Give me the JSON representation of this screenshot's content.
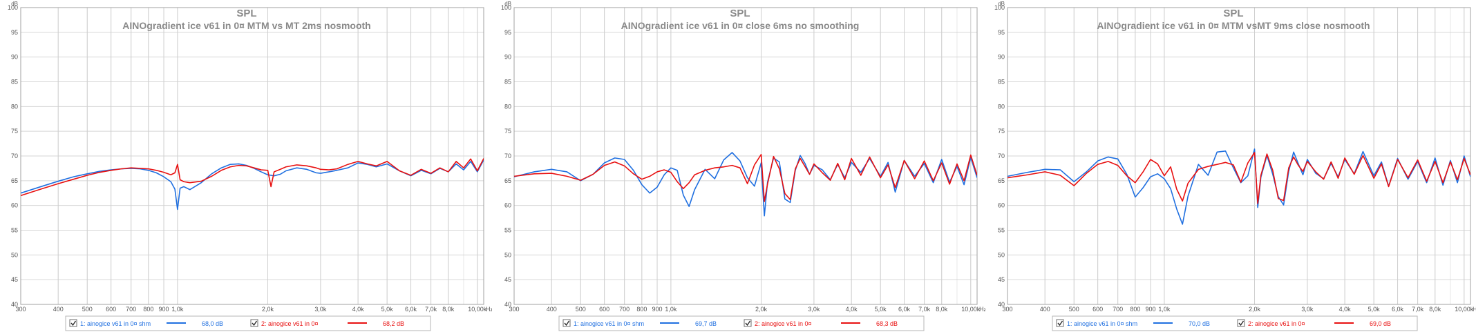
{
  "chart_data": [
    {
      "type": "line",
      "title": "SPL",
      "subtitle": "AINOgradient ice v61 in 0¤ MTM vs MT 2ms nosmooth",
      "yunit": "dB",
      "xunit": "Hz",
      "xscale": "log",
      "xlim": [
        300,
        10500
      ],
      "ylim": [
        40,
        100
      ],
      "x_tick_labels": [
        "300",
        "400",
        "500",
        "600",
        "700",
        "800",
        "900",
        "1,0k",
        "2,0k",
        "3,0k",
        "4,0k",
        "5,0k",
        "6,0k",
        "7,0k",
        "8,0k",
        "10,00k"
      ],
      "y_tick_labels": [
        "100",
        "95",
        "90",
        "85",
        "80",
        "75",
        "70",
        "65",
        "60",
        "55",
        "50",
        "45",
        "40"
      ],
      "grid": true,
      "legend_position": "bottom",
      "series": [
        {
          "name": "1: ainogice v61 in 0¤ shm",
          "value_label": "68,0 dB",
          "color": "#1f6fe0",
          "x": [
            300,
            350,
            400,
            450,
            500,
            550,
            600,
            650,
            700,
            750,
            800,
            850,
            900,
            950,
            980,
            1000,
            1020,
            1050,
            1100,
            1200,
            1300,
            1400,
            1500,
            1600,
            1700,
            1800,
            1900,
            2000,
            2100,
            2200,
            2300,
            2500,
            2700,
            2900,
            3000,
            3200,
            3400,
            3700,
            4000,
            4300,
            4600,
            5000,
            5500,
            6000,
            6500,
            7000,
            7500,
            8000,
            8500,
            9000,
            9500,
            10000,
            10500
          ],
          "y": [
            62.5,
            63.8,
            64.9,
            65.8,
            66.4,
            66.9,
            67.2,
            67.4,
            67.5,
            67.4,
            67.1,
            66.6,
            65.8,
            64.8,
            63.3,
            59.2,
            63.5,
            63.8,
            63.2,
            64.6,
            66.4,
            67.6,
            68.3,
            68.4,
            68.1,
            67.5,
            66.8,
            66.2,
            66.0,
            66.3,
            67.0,
            67.6,
            67.3,
            66.6,
            66.5,
            66.8,
            67.1,
            67.6,
            68.6,
            68.3,
            67.8,
            68.4,
            67.0,
            66.0,
            67.1,
            66.4,
            67.5,
            66.8,
            68.4,
            67.2,
            68.9,
            66.8,
            69.2
          ]
        },
        {
          "name": "2: ainogice v61 in 0¤",
          "value_label": "68,2 dB",
          "color": "#e81010",
          "x": [
            300,
            350,
            400,
            450,
            500,
            550,
            600,
            650,
            700,
            750,
            800,
            850,
            900,
            950,
            980,
            1000,
            1020,
            1050,
            1100,
            1200,
            1300,
            1400,
            1500,
            1600,
            1700,
            1800,
            1900,
            2000,
            2050,
            2100,
            2200,
            2300,
            2500,
            2700,
            2900,
            3000,
            3200,
            3400,
            3700,
            4000,
            4300,
            4600,
            5000,
            5500,
            6000,
            6500,
            7000,
            7500,
            8000,
            8500,
            9000,
            9500,
            10000,
            10500
          ],
          "y": [
            62.0,
            63.3,
            64.4,
            65.3,
            66.1,
            66.7,
            67.1,
            67.4,
            67.6,
            67.5,
            67.4,
            67.1,
            66.7,
            66.2,
            66.6,
            68.3,
            65.2,
            64.8,
            64.6,
            64.9,
            65.9,
            67.1,
            67.8,
            68.1,
            68.0,
            67.6,
            67.2,
            67.1,
            63.8,
            66.8,
            67.3,
            67.8,
            68.2,
            68.0,
            67.6,
            67.3,
            67.2,
            67.4,
            68.3,
            68.9,
            68.4,
            68.0,
            68.9,
            67.0,
            66.1,
            67.3,
            66.5,
            67.6,
            66.8,
            68.9,
            67.6,
            69.4,
            67.0,
            69.5
          ]
        }
      ]
    },
    {
      "type": "line",
      "title": "SPL",
      "subtitle": "AINOgradient ice v61 in 0¤ close 6ms no smoothing",
      "yunit": "dB",
      "xunit": "Hz",
      "xscale": "log",
      "xlim": [
        300,
        10500
      ],
      "ylim": [
        40,
        100
      ],
      "x_tick_labels": [
        "300",
        "400",
        "500",
        "600",
        "700",
        "800",
        "900",
        "1,0k",
        "2,0k",
        "3,0k",
        "4,0k",
        "5,0k",
        "6,0k",
        "7,0k",
        "8,0k",
        "10,00k"
      ],
      "y_tick_labels": [
        "100",
        "95",
        "90",
        "85",
        "80",
        "75",
        "70",
        "65",
        "60",
        "55",
        "50",
        "45",
        "40"
      ],
      "grid": true,
      "legend_position": "bottom",
      "series": [
        {
          "name": "1: ainogice v61 in 0¤ shm",
          "value_label": "69,7 dB",
          "color": "#1f6fe0",
          "x": [
            300,
            350,
            400,
            450,
            500,
            550,
            600,
            650,
            700,
            750,
            800,
            850,
            900,
            950,
            1000,
            1050,
            1100,
            1150,
            1200,
            1300,
            1400,
            1500,
            1600,
            1700,
            1800,
            1900,
            2000,
            2050,
            2100,
            2200,
            2300,
            2400,
            2500,
            2600,
            2700,
            2800,
            2900,
            3000,
            3200,
            3400,
            3600,
            3800,
            4000,
            4300,
            4600,
            5000,
            5300,
            5600,
            6000,
            6500,
            7000,
            7500,
            8000,
            8500,
            9000,
            9500,
            10000,
            10500
          ],
          "y": [
            65.8,
            66.8,
            67.3,
            66.8,
            65.0,
            66.3,
            68.6,
            69.6,
            69.3,
            67.1,
            64.2,
            62.5,
            63.7,
            66.2,
            67.6,
            67.1,
            62.1,
            59.8,
            63.2,
            67.3,
            65.4,
            69.2,
            70.7,
            69.0,
            65.6,
            63.9,
            68.6,
            57.9,
            64.7,
            69.6,
            68.8,
            61.3,
            60.6,
            67.1,
            70.1,
            68.5,
            66.3,
            68.1,
            67.2,
            65.2,
            68.3,
            65.6,
            68.7,
            66.7,
            69.5,
            65.9,
            68.7,
            62.7,
            69.1,
            65.9,
            68.5,
            64.6,
            69.3,
            64.7,
            67.9,
            64.2,
            69.7,
            65.6
          ]
        },
        {
          "name": "2: ainogice v61 in 0¤",
          "value_label": "68,3 dB",
          "color": "#e81010",
          "x": [
            300,
            350,
            400,
            450,
            500,
            550,
            600,
            650,
            700,
            750,
            800,
            850,
            900,
            950,
            1000,
            1050,
            1100,
            1150,
            1200,
            1300,
            1400,
            1500,
            1600,
            1700,
            1800,
            1900,
            2000,
            2050,
            2100,
            2200,
            2300,
            2400,
            2500,
            2600,
            2700,
            2800,
            2900,
            3000,
            3200,
            3400,
            3600,
            3800,
            4000,
            4300,
            4600,
            5000,
            5300,
            5600,
            6000,
            6500,
            7000,
            7500,
            8000,
            8500,
            9000,
            9500,
            10000,
            10500
          ],
          "y": [
            65.9,
            66.4,
            66.5,
            65.9,
            65.1,
            66.3,
            68.1,
            68.8,
            68.0,
            66.4,
            65.3,
            65.9,
            66.8,
            67.2,
            66.7,
            64.8,
            63.4,
            64.6,
            66.2,
            67.1,
            67.6,
            67.8,
            68.1,
            67.6,
            64.4,
            68.2,
            70.3,
            60.8,
            64.3,
            69.9,
            67.4,
            62.4,
            61.2,
            67.4,
            69.5,
            67.9,
            66.3,
            68.4,
            66.6,
            65.1,
            68.5,
            65.2,
            69.5,
            66.1,
            69.8,
            65.6,
            68.2,
            63.6,
            69.1,
            65.4,
            69.0,
            65.0,
            68.6,
            64.3,
            68.4,
            65.0,
            70.2,
            66.1
          ]
        }
      ]
    },
    {
      "type": "line",
      "title": "SPL",
      "subtitle": "AINOgradient ice v61 in 0¤ MTM vsMT 9ms close nosmooth",
      "yunit": "dB",
      "xunit": "Hz",
      "xscale": "log",
      "xlim": [
        300,
        10500
      ],
      "ylim": [
        40,
        100
      ],
      "x_tick_labels": [
        "300",
        "400",
        "500",
        "600",
        "700",
        "800",
        "900",
        "1,0k",
        "2,0k",
        "3,0k",
        "4,0k",
        "5,0k",
        "6,0k",
        "7,0k",
        "8,0k",
        "10,00k"
      ],
      "y_tick_labels": [
        "100",
        "95",
        "90",
        "85",
        "80",
        "75",
        "70",
        "65",
        "60",
        "55",
        "50",
        "45",
        "40"
      ],
      "grid": true,
      "legend_position": "bottom",
      "series": [
        {
          "name": "1: ainogice v61 in 0¤ shm",
          "value_label": "70,0 dB",
          "color": "#1f6fe0",
          "x": [
            300,
            350,
            400,
            450,
            500,
            550,
            600,
            650,
            700,
            750,
            800,
            850,
            900,
            950,
            1000,
            1050,
            1100,
            1150,
            1200,
            1300,
            1400,
            1500,
            1600,
            1700,
            1800,
            1900,
            2000,
            2050,
            2100,
            2200,
            2300,
            2400,
            2500,
            2600,
            2700,
            2800,
            2900,
            3000,
            3200,
            3400,
            3600,
            3800,
            4000,
            4300,
            4600,
            5000,
            5300,
            5600,
            6000,
            6500,
            7000,
            7500,
            8000,
            8500,
            9000,
            9500,
            10000,
            10500
          ],
          "y": [
            65.9,
            66.7,
            67.3,
            67.2,
            64.8,
            66.8,
            69.0,
            69.8,
            69.4,
            66.3,
            61.7,
            63.6,
            65.8,
            66.4,
            65.4,
            63.4,
            59.3,
            56.2,
            61.9,
            68.3,
            66.1,
            70.8,
            71.0,
            67.6,
            64.6,
            66.0,
            71.4,
            59.6,
            65.7,
            70.1,
            66.3,
            61.8,
            60.1,
            66.9,
            70.8,
            68.4,
            66.2,
            69.3,
            66.5,
            65.4,
            68.5,
            65.8,
            69.3,
            66.4,
            70.9,
            66.0,
            68.8,
            63.9,
            69.5,
            65.3,
            68.9,
            64.6,
            69.6,
            64.1,
            69.1,
            64.6,
            70.0,
            65.8
          ]
        },
        {
          "name": "2: ainogice v61 in 0¤",
          "value_label": "69,0 dB",
          "color": "#e81010",
          "x": [
            300,
            350,
            400,
            450,
            500,
            550,
            600,
            650,
            700,
            750,
            800,
            850,
            900,
            950,
            1000,
            1050,
            1100,
            1150,
            1200,
            1300,
            1400,
            1500,
            1600,
            1700,
            1800,
            1900,
            2000,
            2050,
            2100,
            2200,
            2300,
            2400,
            2500,
            2600,
            2700,
            2800,
            2900,
            3000,
            3200,
            3400,
            3600,
            3800,
            4000,
            4300,
            4600,
            5000,
            5300,
            5600,
            6000,
            6500,
            7000,
            7500,
            8000,
            8500,
            9000,
            9500,
            10000,
            10500
          ],
          "y": [
            65.6,
            66.2,
            66.8,
            66.1,
            64.0,
            66.5,
            68.3,
            68.9,
            68.1,
            66.0,
            64.6,
            66.8,
            69.3,
            68.4,
            66.0,
            67.8,
            63.3,
            60.9,
            64.5,
            67.3,
            67.9,
            68.3,
            68.7,
            68.2,
            64.7,
            68.6,
            70.7,
            60.4,
            66.1,
            70.4,
            67.1,
            61.4,
            61.0,
            67.6,
            69.8,
            68.1,
            66.9,
            68.9,
            66.8,
            65.3,
            68.8,
            65.5,
            69.6,
            66.3,
            70.1,
            65.5,
            68.4,
            63.8,
            69.3,
            65.6,
            69.2,
            64.9,
            68.9,
            64.6,
            68.8,
            65.2,
            69.5,
            66.2
          ]
        }
      ]
    }
  ]
}
